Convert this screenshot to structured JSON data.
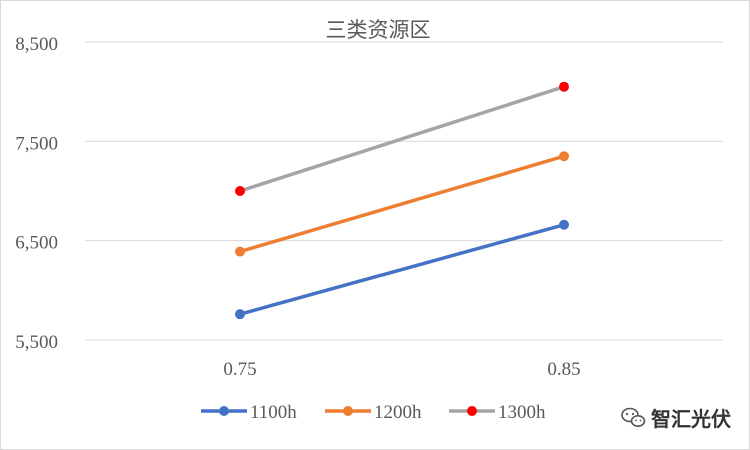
{
  "chart_data": {
    "type": "line",
    "title": "三类资源区",
    "xlabel": "",
    "ylabel": "",
    "x": [
      "0.75",
      "0.85"
    ],
    "ylim": [
      5500,
      8500
    ],
    "yticks": [
      5500,
      6500,
      7500,
      8500
    ],
    "ytick_labels": [
      "5,500",
      "6,500",
      "7,500",
      "8,500"
    ],
    "grid": true,
    "legend": "bottom",
    "series": [
      {
        "name": "1100h",
        "values": [
          5760,
          6660
        ],
        "color": "#4472c4",
        "marker_color": "#4472c4"
      },
      {
        "name": "1200h",
        "values": [
          6390,
          7350
        ],
        "color": "#ed7d31",
        "marker_color": "#ed7d31"
      },
      {
        "name": "1300h",
        "values": [
          7000,
          8050
        ],
        "color": "#a5a5a5",
        "marker_color": "#ff0000"
      }
    ]
  },
  "watermark": {
    "text": "智汇光伏",
    "icon": "wechat-icon"
  }
}
